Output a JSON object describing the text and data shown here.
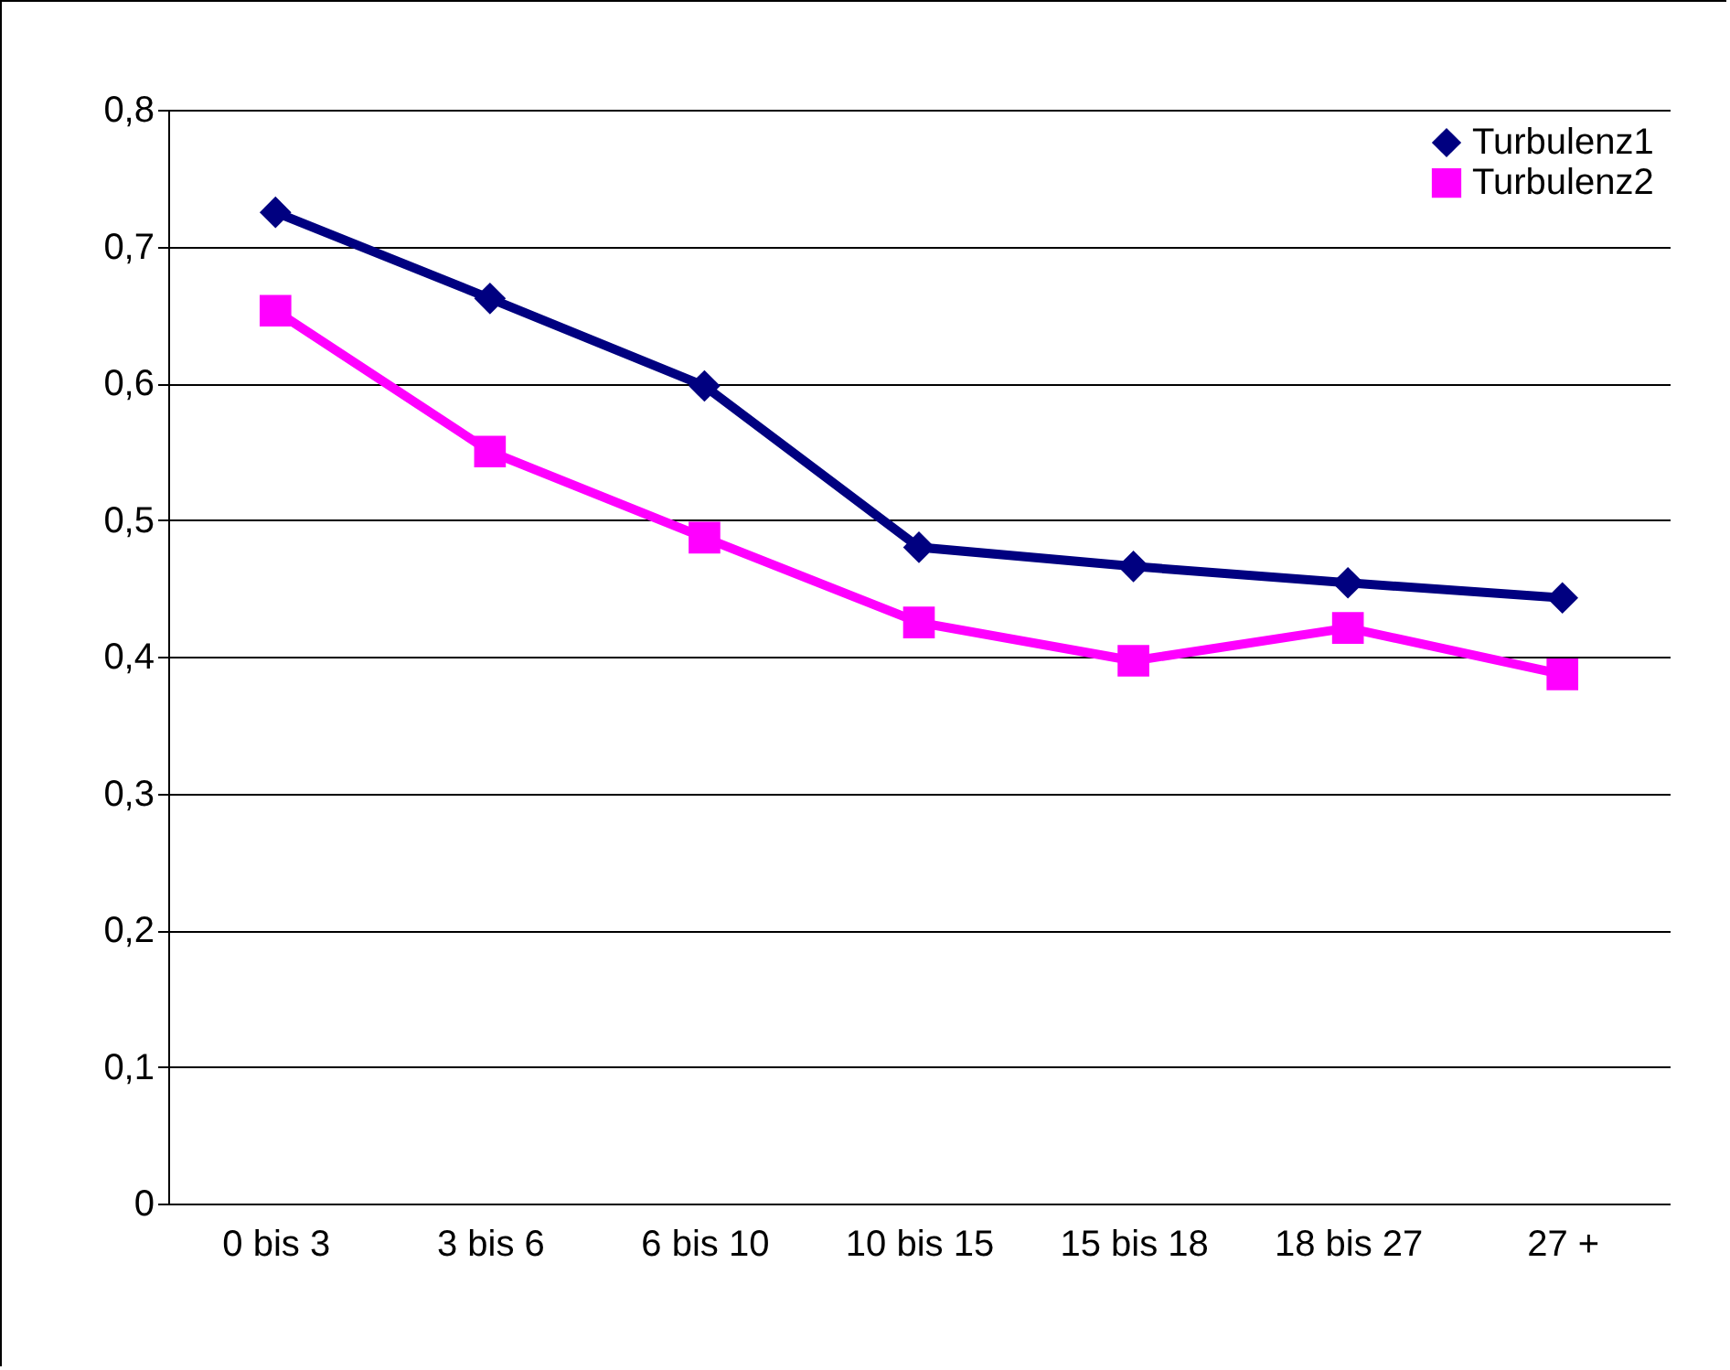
{
  "chart_data": {
    "type": "line",
    "categories": [
      "0 bis 3",
      "3 bis 6",
      "6 bis 10",
      "10 bis 15",
      "15 bis 18",
      "18 bis 27",
      "27 +"
    ],
    "series": [
      {
        "name": "Turbulenz1",
        "color": "#000080",
        "marker": "diamond",
        "values": [
          0.725,
          0.662,
          0.598,
          0.48,
          0.466,
          0.454,
          0.443
        ]
      },
      {
        "name": "Turbulenz2",
        "color": "#ff00ff",
        "marker": "square",
        "values": [
          0.653,
          0.55,
          0.487,
          0.425,
          0.397,
          0.421,
          0.387
        ]
      }
    ],
    "ylim": [
      0,
      0.8
    ],
    "yticks": [
      {
        "value": 0,
        "label": "0"
      },
      {
        "value": 0.1,
        "label": "0,1"
      },
      {
        "value": 0.2,
        "label": "0,2"
      },
      {
        "value": 0.3,
        "label": "0,3"
      },
      {
        "value": 0.4,
        "label": "0,4"
      },
      {
        "value": 0.5,
        "label": "0,5"
      },
      {
        "value": 0.6,
        "label": "0,6"
      },
      {
        "value": 0.7,
        "label": "0,7"
      },
      {
        "value": 0.8,
        "label": "0,8"
      }
    ],
    "grid": "y",
    "legend": "top right",
    "line_style": "solid"
  }
}
